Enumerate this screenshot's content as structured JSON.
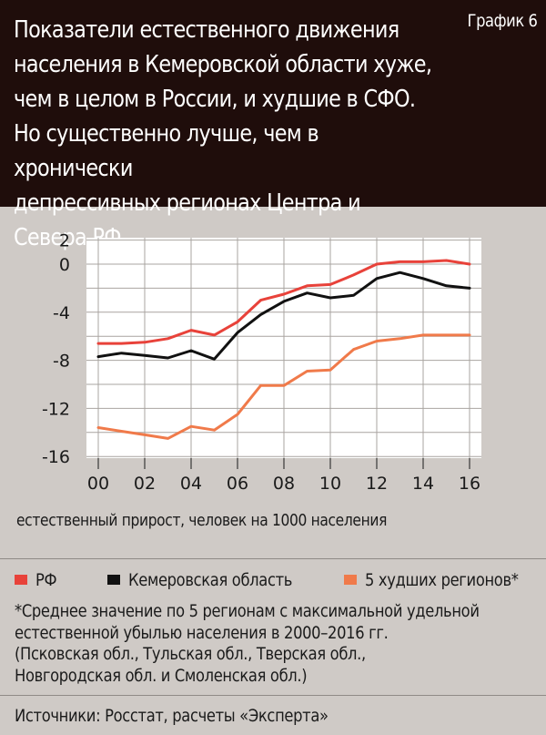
{
  "header": {
    "title": "Показатели естественного движения\nнаселения в Кемеровской области хуже,\nчем в целом в России,  и худшие в СФО.\nНо существенно лучше, чем в хронически\nдепрессивных регионах Центра и Севера РФ",
    "tag": "График 6"
  },
  "chart_data": {
    "type": "line",
    "x": [
      2000,
      2001,
      2002,
      2003,
      2004,
      2005,
      2006,
      2007,
      2008,
      2009,
      2010,
      2011,
      2012,
      2013,
      2014,
      2015,
      2016
    ],
    "x_tick_labels": [
      "00",
      "02",
      "04",
      "06",
      "08",
      "10",
      "12",
      "14",
      "16"
    ],
    "y_tick_labels": [
      "2",
      "0",
      "-4",
      "-8",
      "-12",
      "-16"
    ],
    "y_ticks": [
      2,
      0,
      -4,
      -8,
      -12,
      -16
    ],
    "ylim": [
      -16,
      2
    ],
    "xlabel": "естественный прирост, человек на 1000 населения",
    "series": [
      {
        "name": "РФ",
        "color": "#e8423a",
        "values": [
          -6.6,
          -6.6,
          -6.5,
          -6.2,
          -5.5,
          -5.9,
          -4.8,
          -3.0,
          -2.5,
          -1.8,
          -1.7,
          -0.9,
          0.0,
          0.2,
          0.2,
          0.3,
          0.0
        ]
      },
      {
        "name": "Кемеровская область",
        "color": "#111111",
        "values": [
          -7.7,
          -7.4,
          -7.6,
          -7.8,
          -7.2,
          -7.9,
          -5.7,
          -4.2,
          -3.1,
          -2.4,
          -2.8,
          -2.6,
          -1.2,
          -0.7,
          -1.2,
          -1.8,
          -2.0
        ]
      },
      {
        "name": "5 худших регионов*",
        "color": "#f07a4a",
        "values": [
          -13.6,
          -13.9,
          -14.2,
          -14.5,
          -13.5,
          -13.8,
          -12.5,
          -10.1,
          -10.1,
          -8.9,
          -8.8,
          -7.1,
          -6.4,
          -6.2,
          -5.9,
          -5.9,
          -5.9
        ]
      }
    ],
    "grid": true,
    "legend_position": "bottom"
  },
  "footnote": "*Среднее значение по 5 регионам с максимальной удельной\nестественной убылью населения в 2000–2016 гг.\n(Псковская обл., Тульская обл., Тверская обл.,\nНовгородская обл. и Смоленская обл.)",
  "source": "Источники: Росстат, расчеты «Эксперта»",
  "colors": {
    "background": "#cfcac6",
    "header": "#1f0d0b",
    "plot": "#ffffff",
    "grid": "#a9a4a0"
  }
}
